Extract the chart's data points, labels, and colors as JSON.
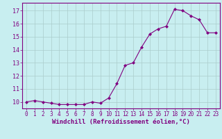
{
  "x": [
    0,
    1,
    2,
    3,
    4,
    5,
    6,
    7,
    8,
    9,
    10,
    11,
    12,
    13,
    14,
    15,
    16,
    17,
    18,
    19,
    20,
    21,
    22,
    23
  ],
  "y": [
    10.0,
    10.1,
    10.0,
    9.9,
    9.8,
    9.8,
    9.8,
    9.8,
    10.0,
    9.9,
    10.3,
    11.4,
    12.8,
    13.0,
    14.2,
    15.2,
    15.6,
    15.8,
    17.1,
    17.0,
    16.6,
    16.3,
    15.3,
    15.3
  ],
  "xlabel": "Windchill (Refroidissement éolien,°C)",
  "xlim_min": -0.5,
  "xlim_max": 23.5,
  "ylim_min": 9.5,
  "ylim_max": 17.6,
  "yticks": [
    10,
    11,
    12,
    13,
    14,
    15,
    16,
    17
  ],
  "xticks": [
    0,
    1,
    2,
    3,
    4,
    5,
    6,
    7,
    8,
    9,
    10,
    11,
    12,
    13,
    14,
    15,
    16,
    17,
    18,
    19,
    20,
    21,
    22,
    23
  ],
  "line_color": "#800080",
  "marker": "D",
  "marker_size": 2.0,
  "bg_color": "#c8eef0",
  "grid_color": "#aacccc",
  "tick_label_color": "#800080",
  "xlabel_color": "#800080",
  "axis_color": "#800080",
  "tick_fontsize": 5.5,
  "xlabel_fontsize": 6.5
}
